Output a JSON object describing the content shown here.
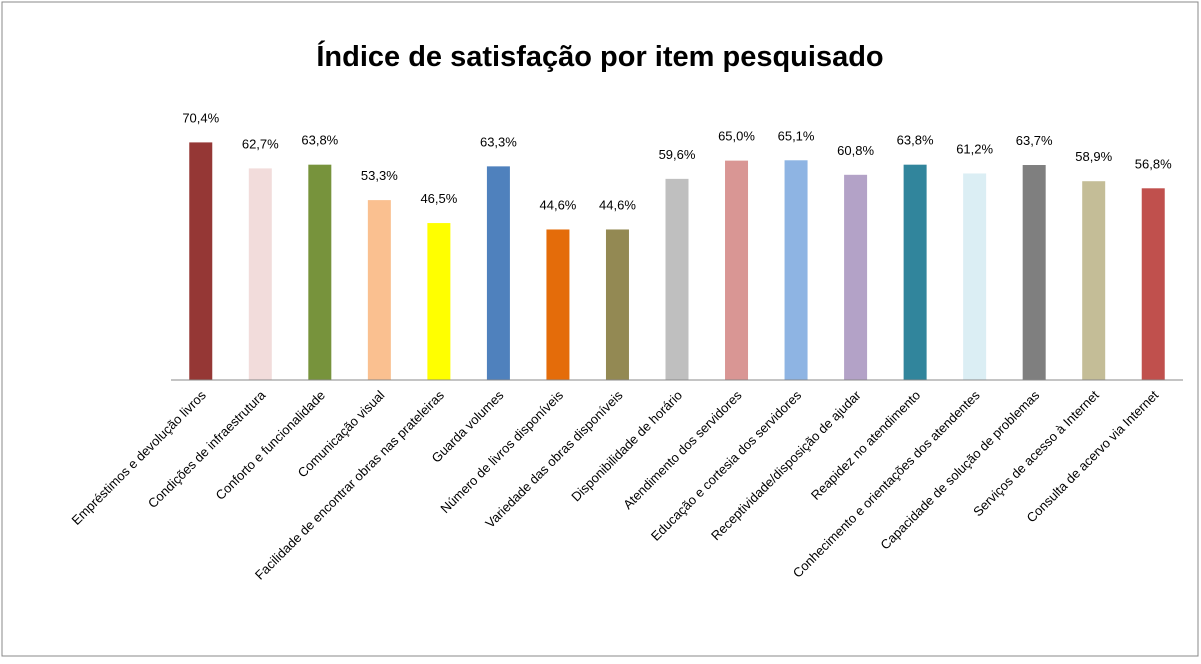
{
  "chart_data": {
    "type": "bar",
    "title": "Índice de satisfação por item pesquisado",
    "categories": [
      "Empréstimos e devolução livros",
      "Condições de infraestrutura",
      "Conforto e funcionalidade",
      "Comunicação visual",
      "Facilidade de encontrar obras nas prateleiras",
      "Guarda volumes",
      "Número de livros disponíveis",
      "Variedade das obras disponíveis",
      "Disponibilidade de horário",
      "Atendimento dos servidores",
      "Educação e cortesia dos servidores",
      "Receptividade/disposição de ajudar",
      "Reapidez no atendimento",
      "Conhecimento e orientações dos atendentes",
      "Capacidade de solução de problemas",
      "Serviços de acesso à Internet",
      "Consulta de acervo via Internet"
    ],
    "values": [
      70.4,
      62.7,
      63.8,
      53.3,
      46.5,
      63.3,
      44.6,
      44.6,
      59.6,
      65.0,
      65.1,
      60.8,
      63.8,
      61.2,
      63.7,
      58.9,
      56.8
    ],
    "value_labels": [
      "70,4%",
      "62,7%",
      "63,8%",
      "53,3%",
      "46,5%",
      "63,3%",
      "44,6%",
      "44,6%",
      "59,6%",
      "65,0%",
      "65,1%",
      "60,8%",
      "63,8%",
      "61,2%",
      "63,7%",
      "58,9%",
      "56,8%"
    ],
    "colors": [
      "#953735",
      "#f2dcdb",
      "#77933c",
      "#fac090",
      "#ffff00",
      "#4f81bd",
      "#e46c0a",
      "#938953",
      "#bfbfbf",
      "#d99694",
      "#8eb4e3",
      "#b3a2c7",
      "#31859c",
      "#dbeef4",
      "#7f7f7f",
      "#c4bd97",
      "#c0504d"
    ],
    "ylim": [
      0,
      80
    ]
  }
}
